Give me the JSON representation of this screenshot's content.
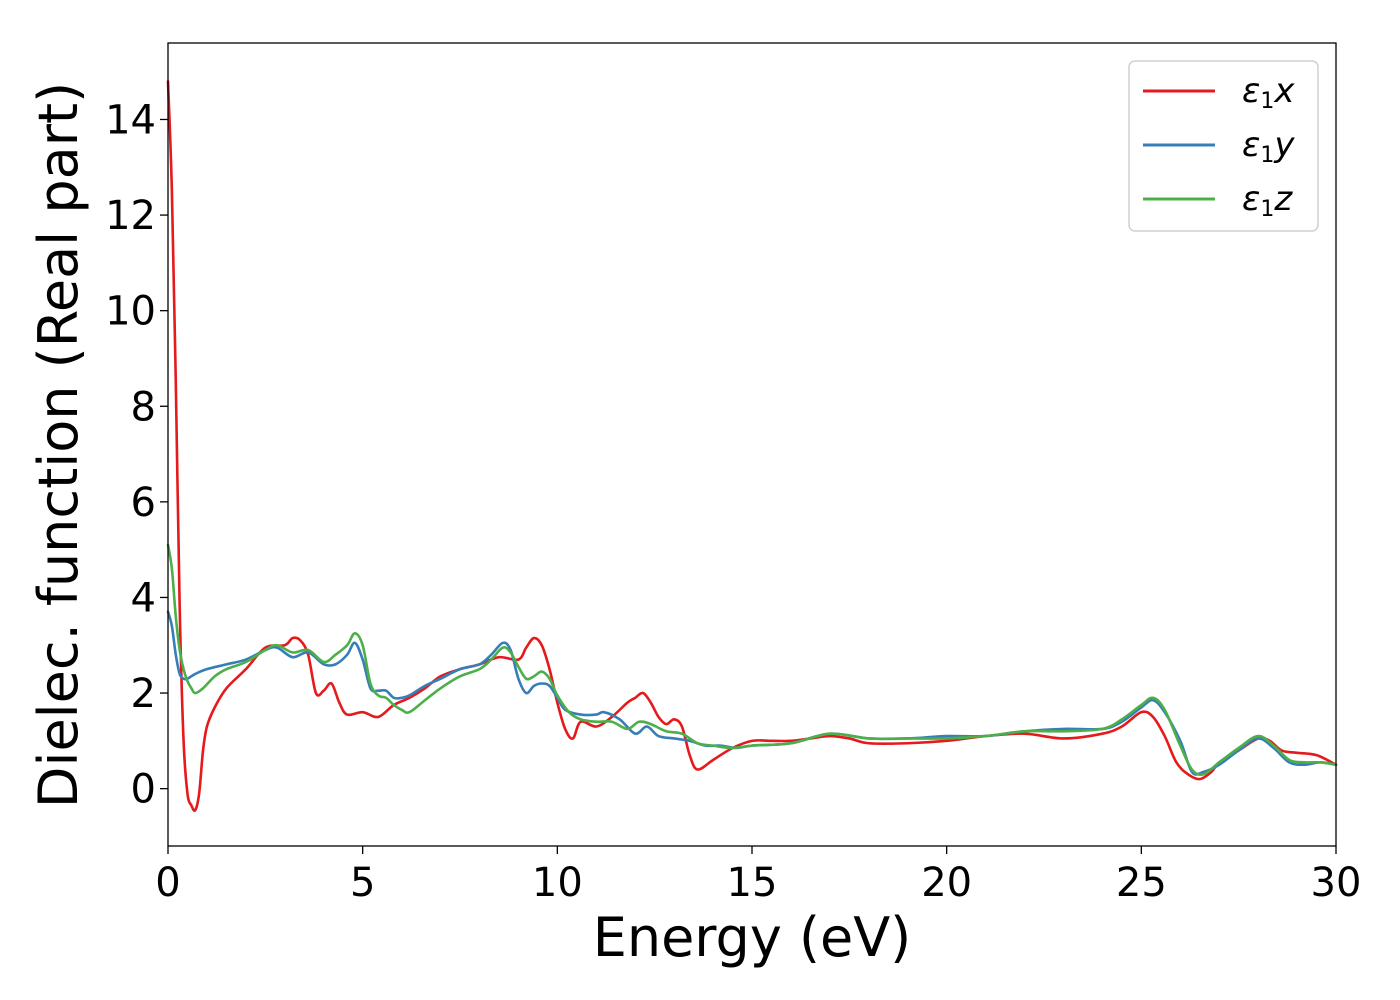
{
  "chart_data": {
    "type": "line",
    "xlabel": "Energy (eV)",
    "ylabel": "Dielec. function (Real part)",
    "xlim": [
      0,
      30
    ],
    "ylim": [
      -1.2,
      15.6
    ],
    "xticks": [
      0,
      5,
      10,
      15,
      20,
      25,
      30
    ],
    "yticks": [
      0,
      2,
      4,
      6,
      8,
      10,
      12,
      14
    ],
    "grid": false,
    "legend_position": "top-right",
    "series": [
      {
        "name": "ε1x",
        "legend_main": "ε",
        "legend_sub": "1",
        "legend_var": "x",
        "color": "#e41a1c",
        "x": [
          0,
          0.1,
          0.2,
          0.3,
          0.4,
          0.5,
          0.6,
          0.7,
          0.8,
          0.9,
          1.0,
          1.2,
          1.5,
          2.0,
          2.5,
          3.0,
          3.2,
          3.4,
          3.6,
          3.8,
          4.0,
          4.2,
          4.4,
          4.6,
          5.0,
          5.4,
          5.8,
          6.2,
          6.6,
          7.0,
          7.5,
          8.0,
          8.5,
          9.0,
          9.2,
          9.4,
          9.6,
          9.8,
          10.0,
          10.2,
          10.4,
          10.6,
          11.0,
          11.4,
          11.8,
          12.0,
          12.2,
          12.4,
          12.6,
          12.8,
          13.0,
          13.2,
          13.4,
          13.6,
          14.0,
          14.5,
          15.0,
          15.5,
          16.0,
          16.5,
          17.0,
          17.5,
          18.0,
          19.0,
          20.0,
          21.0,
          22.0,
          23.0,
          24.0,
          24.5,
          25.0,
          25.3,
          25.6,
          25.9,
          26.2,
          26.5,
          26.8,
          27.0,
          27.5,
          28.0,
          28.3,
          28.6,
          29.0,
          29.5,
          30.0
        ],
        "y": [
          14.8,
          12.5,
          8.5,
          3.8,
          1.0,
          -0.1,
          -0.35,
          -0.45,
          -0.1,
          0.8,
          1.3,
          1.7,
          2.1,
          2.5,
          2.95,
          3.0,
          3.15,
          3.1,
          2.8,
          2.0,
          2.05,
          2.2,
          1.8,
          1.55,
          1.6,
          1.5,
          1.75,
          1.9,
          2.1,
          2.35,
          2.5,
          2.6,
          2.75,
          2.7,
          2.95,
          3.15,
          3.0,
          2.5,
          1.8,
          1.25,
          1.05,
          1.4,
          1.3,
          1.5,
          1.8,
          1.9,
          2.0,
          1.8,
          1.5,
          1.35,
          1.45,
          1.3,
          0.7,
          0.4,
          0.6,
          0.85,
          1.0,
          1.0,
          1.0,
          1.05,
          1.1,
          1.05,
          0.95,
          0.95,
          1.0,
          1.1,
          1.15,
          1.05,
          1.15,
          1.3,
          1.6,
          1.5,
          1.1,
          0.55,
          0.3,
          0.2,
          0.35,
          0.55,
          0.8,
          1.05,
          1.0,
          0.8,
          0.75,
          0.7,
          0.5
        ]
      },
      {
        "name": "ε1y",
        "legend_main": "ε",
        "legend_sub": "1",
        "legend_var": "y",
        "color": "#377eb8",
        "x": [
          0,
          0.1,
          0.2,
          0.3,
          0.4,
          0.5,
          0.7,
          1.0,
          1.5,
          2.0,
          2.5,
          2.8,
          3.2,
          3.6,
          4.0,
          4.3,
          4.6,
          4.8,
          5.0,
          5.2,
          5.4,
          5.6,
          5.8,
          6.0,
          6.2,
          6.6,
          7.0,
          7.5,
          8.0,
          8.3,
          8.6,
          8.8,
          9.0,
          9.2,
          9.4,
          9.6,
          9.8,
          10.0,
          10.2,
          10.6,
          11.0,
          11.2,
          11.6,
          12.0,
          12.3,
          12.6,
          13.0,
          13.4,
          13.8,
          14.2,
          14.6,
          15.0,
          16.0,
          17.0,
          18.0,
          19.0,
          20.0,
          21.0,
          22.0,
          23.0,
          24.0,
          24.5,
          25.0,
          25.3,
          25.6,
          26.0,
          26.3,
          26.6,
          27.0,
          27.5,
          28.0,
          28.4,
          28.8,
          29.2,
          29.6,
          30.0
        ],
        "y": [
          3.7,
          3.4,
          2.8,
          2.4,
          2.3,
          2.3,
          2.4,
          2.5,
          2.6,
          2.7,
          2.9,
          2.95,
          2.75,
          2.85,
          2.6,
          2.6,
          2.8,
          3.05,
          2.7,
          2.1,
          2.05,
          2.05,
          1.9,
          1.9,
          1.95,
          2.15,
          2.3,
          2.5,
          2.6,
          2.8,
          3.05,
          2.9,
          2.3,
          2.0,
          2.15,
          2.2,
          2.15,
          1.9,
          1.65,
          1.55,
          1.55,
          1.6,
          1.45,
          1.15,
          1.3,
          1.1,
          1.05,
          1.0,
          0.9,
          0.9,
          0.85,
          0.9,
          0.95,
          1.15,
          1.05,
          1.05,
          1.1,
          1.1,
          1.2,
          1.25,
          1.25,
          1.4,
          1.7,
          1.85,
          1.6,
          1.0,
          0.35,
          0.35,
          0.5,
          0.8,
          1.05,
          0.85,
          0.55,
          0.5,
          0.55,
          0.5
        ]
      },
      {
        "name": "ε1z",
        "legend_main": "ε",
        "legend_sub": "1",
        "legend_var": "z",
        "color": "#4daf4a",
        "x": [
          0,
          0.1,
          0.2,
          0.3,
          0.4,
          0.5,
          0.6,
          0.7,
          0.9,
          1.2,
          1.5,
          2.0,
          2.5,
          2.8,
          3.2,
          3.6,
          4.0,
          4.3,
          4.6,
          4.8,
          5.0,
          5.2,
          5.4,
          5.6,
          5.8,
          6.0,
          6.2,
          6.6,
          7.0,
          7.5,
          8.0,
          8.3,
          8.6,
          8.8,
          9.0,
          9.2,
          9.4,
          9.6,
          9.8,
          10.0,
          10.3,
          10.6,
          11.0,
          11.4,
          11.8,
          12.1,
          12.4,
          12.8,
          13.2,
          13.6,
          14.0,
          14.5,
          15.0,
          16.0,
          17.0,
          18.0,
          19.0,
          20.0,
          21.0,
          22.0,
          23.0,
          24.0,
          24.5,
          25.0,
          25.3,
          25.6,
          26.0,
          26.3,
          26.6,
          27.0,
          27.5,
          28.0,
          28.4,
          28.8,
          29.2,
          29.6,
          30.0
        ],
        "y": [
          5.1,
          4.6,
          3.6,
          2.9,
          2.5,
          2.25,
          2.1,
          2.0,
          2.1,
          2.35,
          2.5,
          2.65,
          2.9,
          3.0,
          2.85,
          2.9,
          2.65,
          2.8,
          3.0,
          3.25,
          3.0,
          2.2,
          1.95,
          1.9,
          1.75,
          1.65,
          1.6,
          1.85,
          2.1,
          2.35,
          2.5,
          2.7,
          2.95,
          2.85,
          2.55,
          2.3,
          2.35,
          2.45,
          2.3,
          1.95,
          1.6,
          1.45,
          1.4,
          1.4,
          1.25,
          1.4,
          1.35,
          1.2,
          1.15,
          0.95,
          0.9,
          0.85,
          0.9,
          0.95,
          1.15,
          1.05,
          1.05,
          1.05,
          1.1,
          1.2,
          1.2,
          1.25,
          1.45,
          1.75,
          1.9,
          1.65,
          0.9,
          0.4,
          0.3,
          0.55,
          0.85,
          1.1,
          0.9,
          0.6,
          0.55,
          0.55,
          0.5
        ]
      }
    ]
  }
}
